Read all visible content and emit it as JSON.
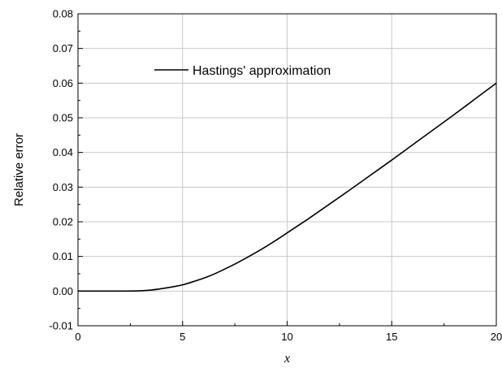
{
  "chart_data": {
    "type": "line",
    "title": "",
    "xlabel": "x",
    "ylabel": "Relative error",
    "xlim": [
      0,
      20
    ],
    "ylim": [
      -0.01,
      0.08
    ],
    "grid": true,
    "legend_position": "top-left",
    "x_ticks": [
      0,
      5,
      10,
      15,
      20
    ],
    "x_tick_labels": [
      "0",
      "5",
      "10",
      "15",
      "20"
    ],
    "y_ticks": [
      -0.01,
      0.0,
      0.01,
      0.02,
      0.03,
      0.04,
      0.05,
      0.06,
      0.07,
      0.08
    ],
    "y_tick_labels": [
      "-0.01",
      "0.00",
      "0.01",
      "0.02",
      "0.03",
      "0.04",
      "0.05",
      "0.06",
      "0.07",
      "0.08"
    ],
    "series": [
      {
        "name": "Hastings' approximation",
        "color": "#000000",
        "x": [
          0,
          1,
          2,
          3,
          3.5,
          4,
          4.5,
          5,
          5.5,
          6,
          6.5,
          7,
          7.5,
          8,
          8.5,
          9,
          9.5,
          10,
          11,
          12,
          13,
          14,
          15,
          16,
          17,
          18,
          19,
          20
        ],
        "y": [
          0.0,
          0.0,
          0.0,
          0.0001,
          0.0003,
          0.0007,
          0.0012,
          0.0018,
          0.0027,
          0.0037,
          0.0049,
          0.0063,
          0.0078,
          0.0094,
          0.0111,
          0.0129,
          0.0148,
          0.0168,
          0.0208,
          0.025,
          0.0292,
          0.0335,
          0.0378,
          0.0422,
          0.0466,
          0.051,
          0.0555,
          0.06
        ]
      }
    ]
  }
}
